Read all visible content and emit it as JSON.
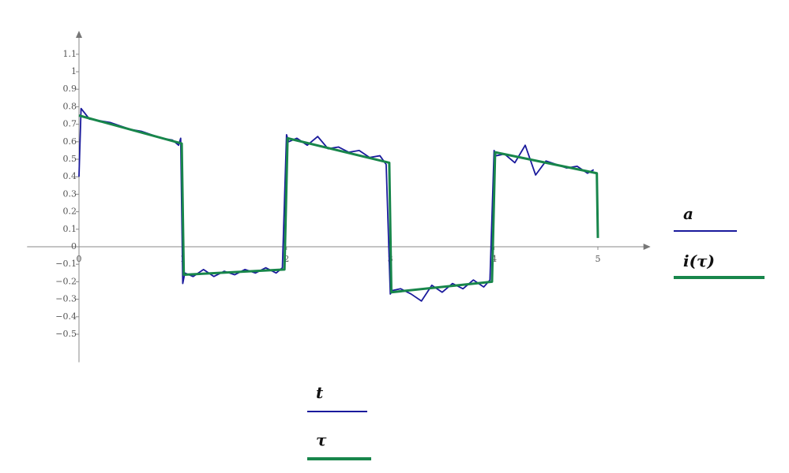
{
  "chart_data": {
    "type": "line",
    "xlim": [
      -0.5,
      5.5
    ],
    "ylim": [
      -0.66,
      1.23
    ],
    "xticks": [
      0,
      1,
      2,
      3,
      4,
      5
    ],
    "yticks": [
      {
        "value": -0.5,
        "label": "−0.5"
      },
      {
        "value": -0.4,
        "label": "−0.4"
      },
      {
        "value": -0.3,
        "label": "−0.3"
      },
      {
        "value": -0.2,
        "label": "−0.2"
      },
      {
        "value": -0.1,
        "label": "−0.1"
      },
      0,
      0.1,
      0.2,
      0.3,
      0.4,
      0.5,
      0.6,
      0.7,
      0.8,
      0.9,
      1,
      1.1
    ],
    "series": [
      {
        "name": "a",
        "x_name": "t",
        "color": "#1a1a9c",
        "x": [
          0,
          0.02,
          0.1,
          0.2,
          0.3,
          0.4,
          0.5,
          0.6,
          0.7,
          0.8,
          0.9,
          0.96,
          0.98,
          1.0,
          1.02,
          1.1,
          1.2,
          1.3,
          1.4,
          1.5,
          1.6,
          1.7,
          1.8,
          1.9,
          1.96,
          2.0,
          2.02,
          2.1,
          2.2,
          2.3,
          2.4,
          2.5,
          2.6,
          2.7,
          2.8,
          2.9,
          2.96,
          3.0,
          3.02,
          3.1,
          3.2,
          3.3,
          3.4,
          3.5,
          3.6,
          3.7,
          3.8,
          3.9,
          3.96,
          4.0,
          4.02,
          4.1,
          4.2,
          4.3,
          4.4,
          4.5,
          4.6,
          4.7,
          4.8,
          4.9,
          4.96
        ],
        "values": [
          0.4,
          0.79,
          0.73,
          0.72,
          0.71,
          0.69,
          0.67,
          0.66,
          0.64,
          0.62,
          0.61,
          0.58,
          0.62,
          -0.21,
          -0.15,
          -0.17,
          -0.13,
          -0.17,
          -0.14,
          -0.16,
          -0.13,
          -0.15,
          -0.12,
          -0.15,
          -0.12,
          0.64,
          0.6,
          0.62,
          0.58,
          0.63,
          0.56,
          0.57,
          0.54,
          0.55,
          0.51,
          0.52,
          0.47,
          -0.27,
          -0.25,
          -0.24,
          -0.27,
          -0.31,
          -0.22,
          -0.26,
          -0.21,
          -0.24,
          -0.19,
          -0.23,
          -0.19,
          0.55,
          0.52,
          0.53,
          0.48,
          0.58,
          0.41,
          0.49,
          0.47,
          0.45,
          0.46,
          0.42,
          0.44
        ]
      },
      {
        "name": "i(τ)",
        "x_name": "τ",
        "color": "#18864b",
        "x": [
          0,
          0.99,
          1.01,
          1.98,
          2.01,
          2.99,
          3.01,
          3.98,
          4.01,
          4.99,
          5
        ],
        "values": [
          0.75,
          0.59,
          -0.16,
          -0.13,
          0.62,
          0.48,
          -0.26,
          -0.2,
          0.54,
          0.42,
          0.05
        ]
      }
    ]
  }
}
